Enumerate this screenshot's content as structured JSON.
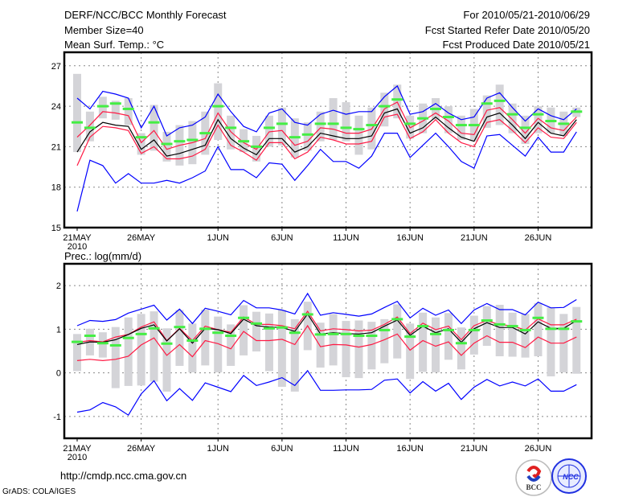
{
  "header": {
    "title": "DERF/NCC/BCC Monthly Forecast",
    "member_size": "Member Size=40",
    "variable": "Mean Surf. Temp.: °C",
    "period": "For 2010/05/21-2010/06/29",
    "started": "Fcst Started Refer Date 2010/05/20",
    "produced": "Fcst Produced Date 2010/05/21"
  },
  "footer": {
    "url": "http://cmdp.ncc.cma.gov.cn",
    "credit": "GrADS: COLA/IGES",
    "logo_bcc": "BCC",
    "logo_ncc": "NCC"
  },
  "colors": {
    "max_min": "#0000ff",
    "spread": "#ff1a44",
    "mean": "#000000",
    "median": "#44ee44",
    "box": "#d4d4d8",
    "grid": "#888888"
  },
  "chart_data": [
    {
      "type": "line",
      "title": "Mean Surf. Temp.: °C",
      "ylim": [
        15,
        28
      ],
      "yticks": [
        15,
        18,
        21,
        24,
        27
      ],
      "xtick_labels": [
        "21MAY",
        "26MAY",
        "1JUN",
        "6JUN",
        "11JUN",
        "16JUN",
        "21JUN",
        "26JUN"
      ],
      "xtick_days": [
        0,
        5,
        11,
        16,
        21,
        26,
        31,
        36
      ],
      "year_label": "2010",
      "grid": true,
      "max": [
        24.6,
        23.8,
        25.1,
        24.9,
        24.6,
        22.4,
        24.0,
        21.8,
        22.4,
        22.6,
        23.2,
        24.9,
        23.6,
        22.5,
        22.1,
        23.5,
        23.8,
        22.8,
        22.6,
        23.4,
        23.7,
        23.4,
        23.6,
        23.6,
        24.7,
        25.5,
        23.4,
        23.6,
        24.2,
        23.5,
        23.0,
        23.2,
        24.6,
        25.0,
        23.9,
        22.9,
        23.8,
        23.3,
        23.0,
        23.8
      ],
      "min": [
        16.2,
        20.0,
        19.6,
        18.3,
        19.0,
        18.3,
        18.3,
        18.5,
        18.3,
        18.7,
        19.2,
        21.0,
        19.3,
        19.3,
        18.7,
        19.8,
        19.7,
        18.5,
        19.6,
        20.8,
        19.9,
        19.9,
        19.4,
        20.3,
        22.0,
        22.0,
        20.2,
        21.1,
        22.0,
        21.0,
        19.9,
        19.4,
        21.8,
        21.9,
        21.1,
        20.3,
        21.7,
        20.6,
        20.6,
        22.1
      ],
      "mean": [
        20.6,
        22.1,
        22.8,
        22.6,
        22.5,
        20.8,
        21.5,
        20.3,
        20.5,
        20.8,
        21.1,
        23.0,
        21.6,
        20.9,
        20.4,
        21.6,
        21.6,
        20.6,
        21.0,
        22.0,
        21.8,
        21.6,
        21.6,
        21.8,
        23.5,
        23.8,
        22.0,
        22.4,
        23.2,
        22.4,
        21.7,
        21.4,
        23.2,
        23.5,
        22.6,
        21.6,
        22.8,
        22.0,
        21.8,
        23.0
      ],
      "spread_upper": [
        21.7,
        22.6,
        23.6,
        23.5,
        23.3,
        21.3,
        22.2,
        20.8,
        21.1,
        21.3,
        21.6,
        23.5,
        22.1,
        21.3,
        20.8,
        22.1,
        22.2,
        21.1,
        21.4,
        22.4,
        22.3,
        22.0,
        22.0,
        22.3,
        23.8,
        24.3,
        22.4,
        22.9,
        23.5,
        22.9,
        22.0,
        21.9,
        23.7,
        23.9,
        23.0,
        22.0,
        23.1,
        22.4,
        22.2,
        23.2
      ],
      "spread_lower": [
        19.6,
        21.7,
        22.5,
        22.4,
        22.2,
        20.5,
        21.0,
        20.1,
        20.1,
        20.3,
        20.8,
        22.6,
        21.1,
        20.6,
        20.0,
        21.3,
        21.3,
        20.1,
        20.6,
        21.7,
        21.5,
        21.2,
        21.2,
        21.4,
        23.2,
        23.4,
        21.6,
        22.1,
        23.0,
        22.0,
        21.3,
        21.0,
        22.8,
        23.0,
        22.2,
        21.3,
        22.4,
        21.7,
        21.6,
        22.8
      ],
      "median": [
        22.8,
        22.4,
        24.0,
        24.2,
        23.8,
        21.7,
        22.8,
        21.2,
        21.4,
        21.5,
        22.0,
        24.0,
        22.4,
        21.4,
        21.0,
        22.4,
        22.7,
        21.7,
        21.9,
        22.7,
        22.7,
        22.4,
        22.3,
        22.6,
        24.0,
        24.5,
        22.7,
        23.1,
        23.8,
        23.2,
        22.6,
        22.6,
        24.2,
        24.4,
        23.4,
        22.4,
        23.4,
        22.9,
        22.7,
        23.6
      ],
      "box_high": [
        26.4,
        23.6,
        24.7,
        24.4,
        24.6,
        22.0,
        24.1,
        22.1,
        22.6,
        22.9,
        23.6,
        25.7,
        23.3,
        22.3,
        21.8,
        23.3,
        23.9,
        23.1,
        22.8,
        23.6,
        24.6,
        24.3,
        23.3,
        23.9,
        25.0,
        25.6,
        23.3,
        24.2,
        24.6,
        24.0,
        23.3,
        23.8,
        24.8,
        25.6,
        24.2,
        23.3,
        24.0,
        23.9,
        23.6,
        23.9
      ],
      "box_low": [
        20.6,
        21.4,
        23.1,
        23.0,
        22.6,
        20.4,
        20.7,
        19.9,
        19.6,
        19.7,
        20.4,
        21.5,
        20.8,
        20.6,
        19.9,
        21.0,
        21.1,
        20.2,
        20.7,
        21.4,
        21.5,
        21.4,
        20.4,
        20.8,
        22.5,
        23.1,
        21.6,
        22.0,
        23.0,
        22.0,
        21.5,
        21.4,
        22.4,
        22.6,
        22.0,
        21.2,
        22.0,
        22.0,
        21.8,
        23.2
      ]
    },
    {
      "type": "line",
      "title": "Prec.: log(mm/d)",
      "ylim": [
        -1.5,
        2.5
      ],
      "yticks": [
        -1,
        0,
        1,
        2
      ],
      "xtick_labels": [
        "21MAY",
        "26MAY",
        "1JUN",
        "6JUN",
        "11JUN",
        "16JUN",
        "21JUN",
        "26JUN"
      ],
      "xtick_days": [
        0,
        5,
        11,
        16,
        21,
        26,
        31,
        36
      ],
      "year_label": "2010",
      "grid": true,
      "max": [
        1.08,
        1.2,
        1.18,
        1.22,
        1.37,
        1.46,
        1.55,
        1.21,
        1.46,
        1.13,
        1.48,
        1.41,
        1.33,
        1.66,
        1.49,
        1.49,
        1.44,
        1.35,
        1.82,
        1.32,
        1.38,
        1.34,
        1.3,
        1.35,
        1.5,
        1.64,
        1.26,
        1.48,
        1.32,
        1.44,
        1.13,
        1.44,
        1.59,
        1.45,
        1.45,
        1.33,
        1.62,
        1.49,
        1.5,
        1.68
      ],
      "min": [
        -0.9,
        -0.85,
        -0.68,
        -0.78,
        -0.97,
        -0.48,
        -0.18,
        -0.64,
        -0.36,
        -0.63,
        -0.23,
        -0.33,
        -0.43,
        -0.06,
        -0.29,
        -0.21,
        -0.11,
        -0.29,
        0.05,
        -0.4,
        -0.4,
        -0.39,
        -0.39,
        -0.38,
        -0.17,
        -0.14,
        -0.46,
        -0.2,
        -0.42,
        -0.24,
        -0.61,
        -0.33,
        -0.15,
        -0.3,
        -0.21,
        -0.3,
        -0.14,
        -0.42,
        -0.42,
        -0.27
      ],
      "mean": [
        0.65,
        0.71,
        0.7,
        0.76,
        0.88,
        1.02,
        1.1,
        0.73,
        1.01,
        0.68,
        1.02,
        0.99,
        0.9,
        1.23,
        1.08,
        1.05,
        1.04,
        0.95,
        1.35,
        0.89,
        0.92,
        0.9,
        0.89,
        0.92,
        1.07,
        1.21,
        0.86,
        1.07,
        0.92,
        1.01,
        0.7,
        1.01,
        1.15,
        1.04,
        1.04,
        0.89,
        1.17,
        1.02,
        1.02,
        1.2
      ],
      "spread_upper": [
        0.7,
        0.74,
        0.71,
        0.82,
        0.88,
        1.05,
        1.17,
        0.74,
        1.02,
        0.74,
        1.07,
        0.99,
        0.93,
        1.28,
        1.11,
        1.11,
        1.08,
        1.01,
        1.41,
        0.96,
        1.01,
        0.99,
        0.96,
        0.98,
        1.11,
        1.28,
        0.9,
        1.14,
        0.99,
        1.07,
        0.76,
        1.08,
        1.2,
        1.1,
        1.08,
        0.98,
        1.24,
        1.1,
        1.1,
        1.23
      ],
      "spread_lower": [
        0.28,
        0.31,
        0.28,
        0.31,
        0.38,
        0.64,
        0.8,
        0.4,
        0.65,
        0.37,
        0.74,
        0.67,
        0.55,
        0.95,
        0.74,
        0.74,
        0.77,
        0.65,
        1.08,
        0.6,
        0.65,
        0.64,
        0.59,
        0.65,
        0.76,
        0.89,
        0.52,
        0.74,
        0.61,
        0.71,
        0.4,
        0.68,
        0.85,
        0.7,
        0.7,
        0.58,
        0.82,
        0.68,
        0.68,
        0.82
      ],
      "median": [
        0.71,
        0.85,
        0.68,
        0.63,
        0.8,
        0.89,
        1.02,
        0.67,
        1.05,
        0.74,
        1.01,
        0.92,
        0.85,
        1.26,
        1.13,
        1.02,
        1.04,
        0.92,
        1.34,
        0.88,
        0.89,
        0.89,
        0.85,
        0.85,
        0.98,
        1.23,
        0.83,
        1.07,
        0.89,
        0.98,
        0.68,
        0.98,
        1.2,
        1.11,
        1.07,
        0.98,
        1.26,
        1.01,
        1.01,
        1.18
      ],
      "box_high": [
        0.89,
        1.01,
        0.93,
        1.05,
        1.27,
        1.35,
        1.41,
        1.02,
        1.44,
        1.13,
        1.45,
        1.29,
        1.11,
        1.55,
        1.4,
        1.36,
        1.44,
        1.23,
        1.63,
        1.15,
        1.35,
        1.19,
        1.2,
        1.17,
        1.23,
        1.57,
        1.13,
        1.38,
        1.27,
        1.37,
        1.04,
        1.31,
        1.53,
        1.56,
        1.38,
        1.35,
        1.6,
        1.5,
        1.35,
        1.51
      ],
      "box_low": [
        0.04,
        0.4,
        0.35,
        -0.35,
        -0.3,
        -0.29,
        -0.2,
        -0.43,
        0.16,
        0.01,
        0.17,
        0.01,
        0.16,
        0.4,
        0.49,
        0.04,
        -0.32,
        -0.43,
        0.52,
        0.12,
        0.17,
        -0.1,
        -0.12,
        0.08,
        0.22,
        0.33,
        -0.14,
        0.02,
        0.01,
        0.3,
        0.08,
        0.42,
        0.62,
        0.38,
        0.37,
        0.35,
        0.38,
        -0.08,
        0.01,
        -0.02
      ]
    }
  ]
}
